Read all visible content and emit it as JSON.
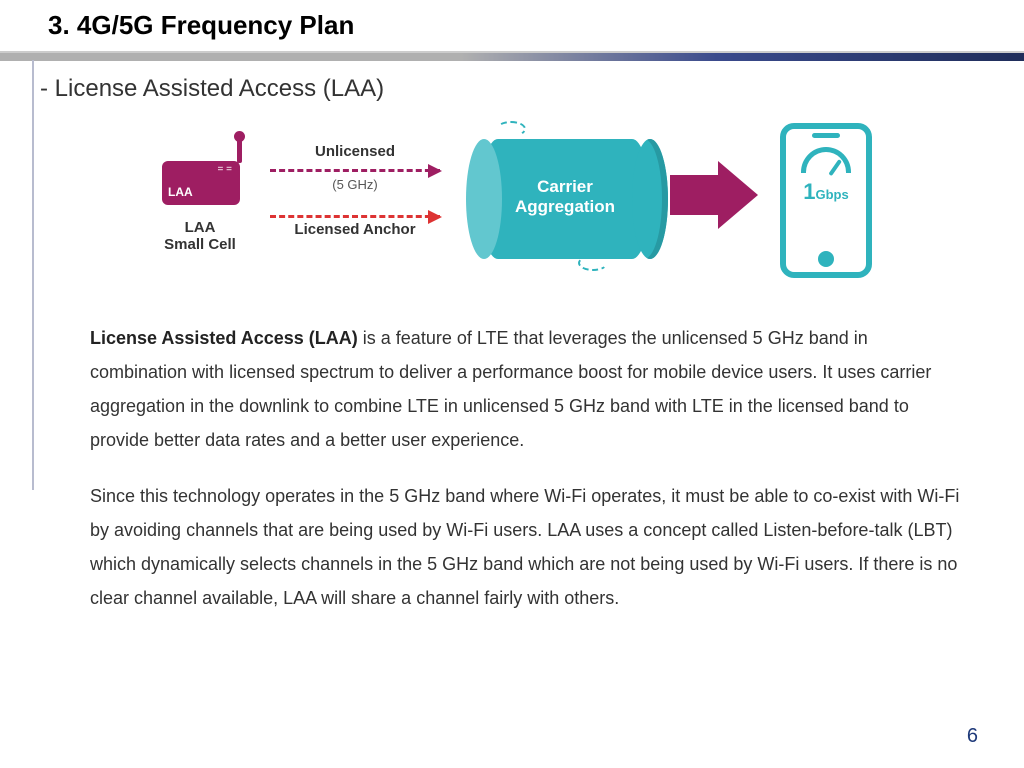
{
  "title": "3. 4G/5G Frequency Plan",
  "subtitle": "- License Assisted Access (LAA)",
  "diagram": {
    "smallcell": {
      "badge": "LAA",
      "led": "= =",
      "caption": "LAA\nSmall Cell",
      "color": "#9e1e62"
    },
    "arrow_top": {
      "label": "Unlicensed",
      "sublabel": "(5 GHz)",
      "color": "#9e1e62"
    },
    "arrow_bottom": {
      "label": "Licensed Anchor",
      "color": "#d33"
    },
    "cylinder": {
      "line1": "Carrier",
      "line2": "Aggregation",
      "fill": "#2fb3bd",
      "cap": "#62c7cf"
    },
    "big_arrow_color": "#9e1e62",
    "phone": {
      "outline": "#2fb3bd",
      "speed_num": "1",
      "speed_unit": "Gbps"
    }
  },
  "para1_bold": "License Assisted Access (LAA)",
  "para1_rest": " is a feature of LTE that leverages the unlicensed 5 GHz band in combination with licensed spectrum to deliver a performance boost for mobile device users. It uses carrier aggregation in the downlink to combine LTE in unlicensed 5 GHz band with LTE in the licensed band to provide better data rates and a better user experience.",
  "para2": "Since this technology operates in the 5 GHz band where Wi-Fi operates, it must be able to co-exist with Wi-Fi by avoiding channels that are being used by Wi-Fi users. LAA uses a concept called Listen-before-talk (LBT) which dynamically selects channels in the 5 GHz band which are not being used by Wi-Fi users. If there is no clear channel available, LAA will share a channel fairly with others.",
  "page_number": "6",
  "colors": {
    "divider_gradient_start": "#b0b0b0",
    "divider_gradient_end": "#1f2d5a",
    "left_rule": "#b8bccf",
    "page_num": "#1f3a7a",
    "body_text": "#333333"
  }
}
